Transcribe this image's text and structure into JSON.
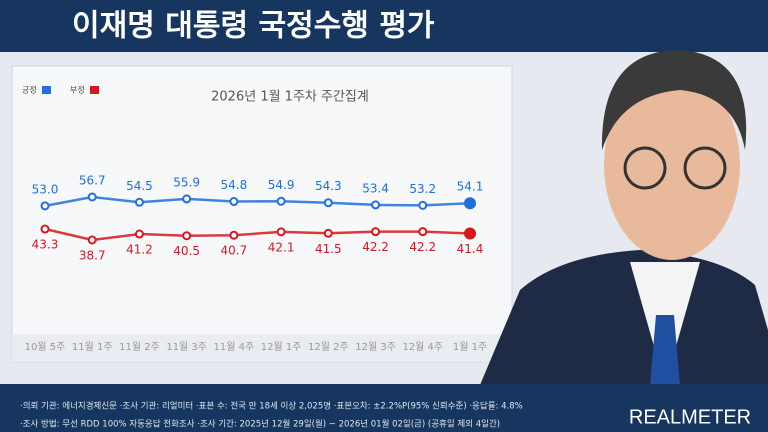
{
  "header": {
    "title": "이재명 대통령 국정수행 평가"
  },
  "chart_data": {
    "type": "line",
    "title": "2026년 1월 1주차 주간집계",
    "categories": [
      "10월 5주",
      "11월 1주",
      "11월 2주",
      "11월 3주",
      "11월 4주",
      "12월 1주",
      "12월 2주",
      "12월 3주",
      "12월 4주",
      "1월 1주"
    ],
    "series": [
      {
        "name": "긍정",
        "color": "#1f6fdc",
        "values": [
          53.0,
          56.7,
          54.5,
          55.9,
          54.8,
          54.9,
          54.3,
          53.4,
          53.2,
          54.1
        ],
        "value_labels": [
          "53.0",
          "56.7",
          "54.5",
          "55.9",
          "54.8",
          "54.9",
          "54.3",
          "53.4",
          "53.2",
          "54.1"
        ]
      },
      {
        "name": "부정",
        "color": "#d6181e",
        "values": [
          43.3,
          38.7,
          41.2,
          40.5,
          40.7,
          42.1,
          41.5,
          42.2,
          42.2,
          41.4
        ],
        "value_labels": [
          "43.3",
          "38.7",
          "41.2",
          "40.5",
          "40.7",
          "42.1",
          "41.5",
          "42.2",
          "42.2",
          "41.4"
        ]
      }
    ],
    "legend": "top-left"
  },
  "footer": {
    "notes": [
      "·의뢰 기관: 에너지경제신문 ·조사 기관: 리얼미터 ·표본 수: 전국 만 18세 이상 2,025명 ·표본오차: ±2.2%P(95% 신뢰수준) ·응답률: 4.8%",
      "·조사 방법: 무선 RDD 100% 자동응답 전화조사 ·조사 기간: 2025년 12월 29일(월) ~ 2026년 01월 02일(금) (공휴일 제외 4일간)"
    ],
    "logo": "REALMETER"
  }
}
